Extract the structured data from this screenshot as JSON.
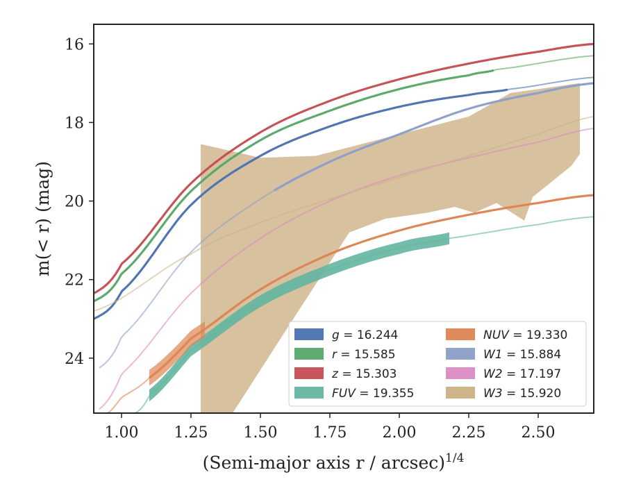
{
  "chart_data": {
    "type": "line",
    "xlabel": "(Semi-major axis r / arcsec)",
    "xlabel_sup": "1/4",
    "ylabel": "m(< r) (mag)",
    "xlim": [
      0.9,
      2.7
    ],
    "ylim": [
      25.4,
      15.5
    ],
    "y_inverted": true,
    "grid": false,
    "legend_position": "lower-right",
    "xticks": [
      1.0,
      1.25,
      1.5,
      1.75,
      2.0,
      2.25,
      2.5
    ],
    "xtick_labels": [
      "1.00",
      "1.25",
      "1.50",
      "1.75",
      "2.00",
      "2.25",
      "2.50"
    ],
    "yticks": [
      16,
      18,
      20,
      22,
      24
    ],
    "ytick_labels": [
      "16",
      "18",
      "20",
      "22",
      "24"
    ],
    "series": [
      {
        "name": "g = 16.244",
        "var": "g",
        "mag": "16.244",
        "color": "#4c72b0",
        "x": [
          0.9,
          1.0,
          1.25,
          1.5,
          1.75,
          2.0,
          2.25,
          2.4,
          2.7
        ],
        "y": [
          23.0,
          22.3,
          20.1,
          18.85,
          18.1,
          17.6,
          17.3,
          17.15,
          16.85
        ],
        "band_xmax": 2.39
      },
      {
        "name": "r = 15.585",
        "var": "r",
        "mag": "15.585",
        "color": "#55a868",
        "x": [
          0.9,
          1.0,
          1.25,
          1.5,
          1.75,
          2.0,
          2.25,
          2.35,
          2.7
        ],
        "y": [
          22.55,
          21.85,
          19.75,
          18.45,
          17.7,
          17.15,
          16.8,
          16.65,
          16.3
        ],
        "band_xmax": 2.34
      },
      {
        "name": "z = 15.303",
        "var": "z",
        "mag": "15.303",
        "color": "#c44e52",
        "x": [
          0.9,
          1.0,
          1.25,
          1.5,
          1.75,
          2.0,
          2.25,
          2.5,
          2.7
        ],
        "y": [
          22.35,
          21.6,
          19.55,
          18.25,
          17.45,
          16.9,
          16.5,
          16.2,
          16.0
        ],
        "band_xmax": 2.7
      },
      {
        "name": "FUV = 19.355",
        "var": "FUV",
        "mag": "19.355",
        "color": "#64b5a0",
        "x": [
          1.05,
          1.1,
          1.25,
          1.5,
          1.75,
          2.0,
          2.18,
          2.5,
          2.7
        ],
        "y": [
          25.4,
          24.95,
          23.8,
          22.55,
          21.75,
          21.2,
          20.95,
          20.6,
          20.4
        ],
        "band_xmin": 1.1,
        "band_xmax": 2.18,
        "band_width": 0.3
      },
      {
        "name": "NUV = 19.330",
        "var": "NUV",
        "mag": "19.330",
        "color": "#dd8452",
        "x": [
          0.95,
          1.0,
          1.1,
          1.25,
          1.5,
          1.75,
          2.0,
          2.25,
          2.5,
          2.7
        ],
        "y": [
          25.4,
          25.0,
          24.5,
          23.5,
          22.25,
          21.35,
          20.75,
          20.35,
          20.05,
          19.85
        ],
        "band_xmin": 1.1,
        "band_xmax": 2.7
      },
      {
        "name": "W1 = 15.884",
        "var": "W1",
        "mag": "15.884",
        "color": "#8c9ec8",
        "x": [
          0.92,
          1.0,
          1.25,
          1.5,
          1.75,
          2.0,
          2.25,
          2.5,
          2.7
        ],
        "y": [
          24.25,
          23.45,
          21.3,
          19.95,
          19.0,
          18.3,
          17.65,
          17.25,
          17.0
        ],
        "band_xmin": 1.55
      },
      {
        "name": "W2 = 17.197",
        "var": "W2",
        "mag": "17.197",
        "color": "#da8bc3",
        "x": [
          0.92,
          1.0,
          1.25,
          1.5,
          1.75,
          2.0,
          2.25,
          2.5,
          2.7
        ],
        "y": [
          25.3,
          24.4,
          22.35,
          20.95,
          20.0,
          19.35,
          18.9,
          18.5,
          18.15
        ]
      },
      {
        "name": "W3 = 15.920",
        "var": "W3",
        "mag": "15.920",
        "color": "#ccb084",
        "x": [
          0.9,
          1.25,
          1.5,
          1.75,
          2.0,
          2.25,
          2.5,
          2.7
        ],
        "y": [
          22.8,
          21.35,
          20.55,
          19.95,
          19.4,
          18.85,
          18.3,
          17.85
        ],
        "band_upper": {
          "x": [
            1.285,
            1.5,
            1.7,
            2.0,
            2.25,
            2.4,
            2.65
          ],
          "y": [
            18.55,
            18.9,
            18.85,
            18.3,
            17.85,
            17.25,
            17.0
          ]
        },
        "band_lower": {
          "x": [
            1.285,
            1.29,
            1.4,
            1.6,
            1.82,
            1.95,
            2.1,
            2.2,
            2.27,
            2.35,
            2.45,
            2.48,
            2.55,
            2.62,
            2.65,
            2.65
          ],
          "y": [
            25.4,
            25.4,
            25.4,
            23.2,
            20.8,
            20.45,
            20.3,
            20.15,
            20.3,
            20.05,
            20.5,
            19.9,
            19.5,
            19.1,
            18.8,
            18.6
          ]
        }
      }
    ]
  }
}
